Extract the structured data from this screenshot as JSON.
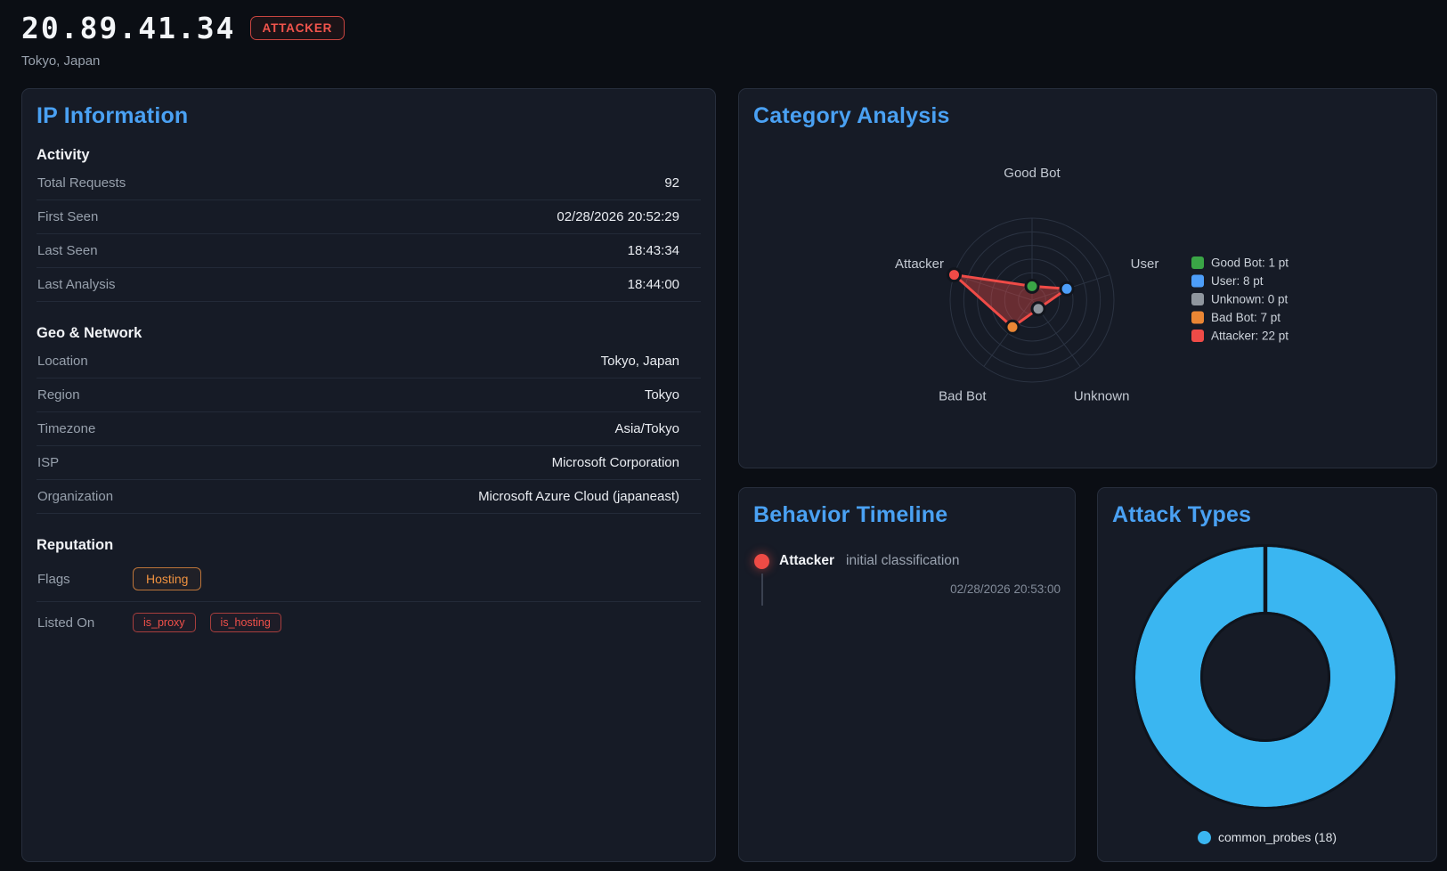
{
  "header": {
    "ip": "20.89.41.34",
    "badge": "ATTACKER",
    "location": "Tokyo, Japan"
  },
  "colors": {
    "accent_blue": "#4aa1f3",
    "danger_red": "#ef4b47",
    "warning_orange": "#f09240",
    "panel_bg": "#161b26",
    "page_bg": "#0b0e14"
  },
  "ip_info": {
    "title": "IP Information",
    "activity": {
      "heading": "Activity",
      "rows": [
        {
          "label": "Total Requests",
          "value": "92"
        },
        {
          "label": "First Seen",
          "value": "02/28/2026 20:52:29"
        },
        {
          "label": "Last Seen",
          "value": "18:43:34"
        },
        {
          "label": "Last Analysis",
          "value": "18:44:00"
        }
      ]
    },
    "geo": {
      "heading": "Geo & Network",
      "rows": [
        {
          "label": "Location",
          "value": "Tokyo, Japan"
        },
        {
          "label": "Region",
          "value": "Tokyo"
        },
        {
          "label": "Timezone",
          "value": "Asia/Tokyo"
        },
        {
          "label": "ISP",
          "value": "Microsoft Corporation"
        },
        {
          "label": "Organization",
          "value": "Microsoft Azure Cloud (japaneast)"
        }
      ]
    },
    "reputation": {
      "heading": "Reputation",
      "flags_label": "Flags",
      "flags": [
        "Hosting"
      ],
      "listed_label": "Listed On",
      "listed_on": [
        "is_proxy",
        "is_hosting"
      ]
    }
  },
  "category_analysis": {
    "title": "Category Analysis"
  },
  "behavior_timeline": {
    "title": "Behavior Timeline",
    "events": [
      {
        "category": "Attacker",
        "description": "initial classification",
        "timestamp": "02/28/2026 20:53:00",
        "color": "#ee4b45"
      }
    ]
  },
  "attack_types": {
    "title": "Attack Types"
  },
  "chart_data": [
    {
      "type": "radar",
      "title": "Category Analysis",
      "categories": [
        "Good Bot",
        "User",
        "Unknown",
        "Bad Bot",
        "Attacker"
      ],
      "values": [
        1,
        8,
        0,
        7,
        22
      ],
      "unit": "pt",
      "scale_max": 22,
      "series_color": "#ef4b47",
      "fill_opacity": 0.38,
      "point_colors": [
        "#3aa546",
        "#4d9ef9",
        "#8f969e",
        "#ea8634",
        "#ef4b47"
      ],
      "grid": true,
      "grid_rings": 6,
      "legend_position": "right",
      "legend": [
        {
          "label": "Good Bot: 1 pt",
          "color": "#3aa546"
        },
        {
          "label": "User: 8 pt",
          "color": "#4d9ef9"
        },
        {
          "label": "Unknown: 0 pt",
          "color": "#8f969e"
        },
        {
          "label": "Bad Bot: 7 pt",
          "color": "#ea8634"
        },
        {
          "label": "Attacker: 22 pt",
          "color": "#ef4b47"
        }
      ]
    },
    {
      "type": "donut",
      "title": "Attack Types",
      "segments": [
        {
          "label": "common_probes (18)",
          "value": 18,
          "color": "#3ab6f1"
        }
      ],
      "cutout_ratio": 0.5,
      "legend_position": "bottom"
    }
  ]
}
